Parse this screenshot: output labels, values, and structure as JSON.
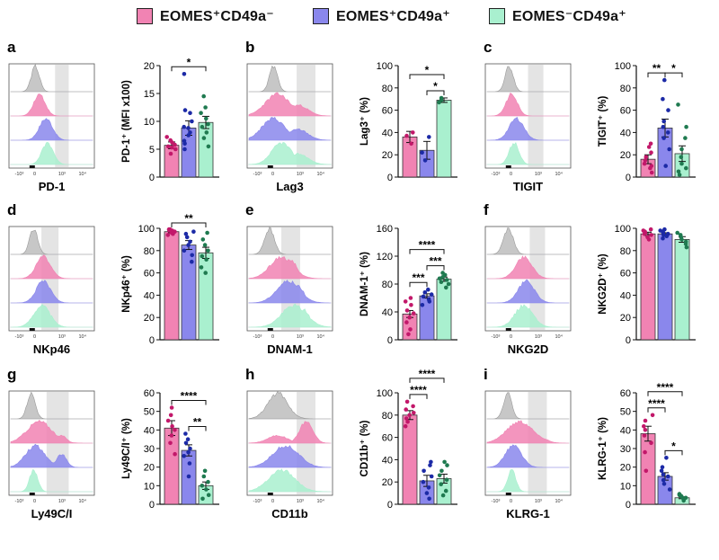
{
  "legend": [
    {
      "label": "EOMES⁺CD49a⁻",
      "color": "#f183b3"
    },
    {
      "label": "EOMES⁺CD49a⁺",
      "color": "#8a87ec"
    },
    {
      "label": "EOMES⁻CD49a⁺",
      "color": "#a9f0cf"
    }
  ],
  "colors": {
    "group1": "#f183b3",
    "group1_dot": "#c2186a",
    "group2": "#8a87ec",
    "group2_dot": "#1c2aa6",
    "group3": "#a9f0cf",
    "group3_dot": "#1f7a50",
    "histogram_isotype": "#bdbdbd",
    "gate": "#e4e4e4"
  },
  "hist_axis_ticks": [
    "-10³",
    "0",
    "10³",
    "10⁴"
  ],
  "chart_data": [
    {
      "panel": "a",
      "type": "bar",
      "marker": "PD-1",
      "ylabel": "PD-1⁺ (MFI x100)",
      "ylim": [
        0,
        20
      ],
      "yticks": [
        0,
        5,
        10,
        15,
        20
      ],
      "values": [
        5.7,
        8.8,
        9.8
      ],
      "errors": [
        0.6,
        1.3,
        1.1
      ],
      "points": [
        [
          4.2,
          5.0,
          5.3,
          5.8,
          6.2,
          6.6,
          7.2,
          5.5
        ],
        [
          5.0,
          6.0,
          6.5,
          7.5,
          8.0,
          8.8,
          9.0,
          10.0,
          11.5,
          12.0,
          18.5
        ],
        [
          5.5,
          7.0,
          8.0,
          9.0,
          9.5,
          10.5,
          11.5,
          12.5,
          14.5
        ]
      ],
      "significance": [
        {
          "from": 0,
          "to": 2,
          "label": "*"
        }
      ]
    },
    {
      "panel": "b",
      "type": "bar",
      "marker": "Lag3",
      "ylabel": "Lag3⁺ (%)",
      "ylim": [
        0,
        100
      ],
      "yticks": [
        0,
        20,
        40,
        60,
        80,
        100
      ],
      "values": [
        36,
        24,
        69
      ],
      "errors": [
        5,
        8,
        2
      ],
      "points": [
        [
          30,
          40,
          37
        ],
        [
          15,
          22,
          36
        ],
        [
          67,
          69,
          71
        ]
      ],
      "significance": [
        {
          "from": 0,
          "to": 2,
          "label": "*"
        },
        {
          "from": 1,
          "to": 2,
          "label": "*"
        }
      ]
    },
    {
      "panel": "c",
      "type": "bar",
      "marker": "TIGIT",
      "ylabel": "TIGIT⁺ (%)",
      "ylim": [
        0,
        100
      ],
      "yticks": [
        0,
        20,
        40,
        60,
        80,
        100
      ],
      "values": [
        16,
        44,
        21
      ],
      "errors": [
        4,
        8,
        7
      ],
      "points": [
        [
          4,
          8,
          10,
          12,
          15,
          18,
          22,
          27,
          30
        ],
        [
          10,
          25,
          35,
          40,
          45,
          50,
          60,
          70,
          87
        ],
        [
          2,
          5,
          8,
          12,
          18,
          25,
          35,
          45,
          65
        ]
      ],
      "significance": [
        {
          "from": 0,
          "to": 1,
          "label": "**"
        },
        {
          "from": 1,
          "to": 2,
          "label": "*"
        }
      ]
    },
    {
      "panel": "d",
      "type": "bar",
      "marker": "NKp46",
      "ylabel": "NKp46⁺ (%)",
      "ylim": [
        0,
        100
      ],
      "yticks": [
        0,
        20,
        40,
        60,
        80,
        100
      ],
      "values": [
        97,
        85,
        78
      ],
      "errors": [
        1,
        4,
        5
      ],
      "points": [
        [
          94,
          95,
          96,
          97,
          98,
          98,
          99,
          99
        ],
        [
          70,
          76,
          80,
          85,
          88,
          92,
          95,
          97
        ],
        [
          60,
          65,
          72,
          75,
          80,
          85,
          90,
          96
        ]
      ],
      "significance": [
        {
          "from": 0,
          "to": 2,
          "label": "**"
        }
      ]
    },
    {
      "panel": "e",
      "type": "bar",
      "marker": "DNAM-1",
      "ylabel": "DNAM-1⁺ (%)",
      "ylim": [
        0,
        160
      ],
      "yticks": [
        0,
        40,
        80,
        120,
        160
      ],
      "values": [
        37,
        63,
        87
      ],
      "errors": [
        5,
        3,
        3
      ],
      "points": [
        [
          8,
          15,
          25,
          32,
          38,
          42,
          50,
          55,
          60
        ],
        [
          50,
          55,
          58,
          62,
          65,
          68,
          72
        ],
        [
          75,
          80,
          83,
          86,
          88,
          90,
          93,
          96
        ]
      ],
      "significance": [
        {
          "from": 0,
          "to": 2,
          "label": "****"
        },
        {
          "from": 0,
          "to": 1,
          "label": "***"
        },
        {
          "from": 1,
          "to": 2,
          "label": "***"
        }
      ]
    },
    {
      "panel": "f",
      "type": "bar",
      "marker": "NKG2D",
      "ylabel": "NKG2D⁺ (%)",
      "ylim": [
        0,
        100
      ],
      "yticks": [
        0,
        20,
        40,
        60,
        80,
        100
      ],
      "values": [
        95,
        95,
        90
      ],
      "errors": [
        1.5,
        1,
        2.5
      ],
      "points": [
        [
          90,
          92,
          94,
          95,
          96,
          97,
          98,
          99
        ],
        [
          91,
          93,
          94,
          95,
          96,
          97,
          98,
          99
        ],
        [
          83,
          86,
          88,
          90,
          92,
          94,
          96
        ]
      ],
      "significance": []
    },
    {
      "panel": "g",
      "type": "bar",
      "marker": "Ly49C/I",
      "ylabel": "Ly49C/I⁺ (%)",
      "ylim": [
        0,
        60
      ],
      "yticks": [
        0,
        10,
        20,
        30,
        40,
        50,
        60
      ],
      "values": [
        41,
        29,
        10
      ],
      "errors": [
        4,
        3,
        2
      ],
      "points": [
        [
          27,
          33,
          37,
          40,
          42,
          45,
          48,
          52
        ],
        [
          15,
          22,
          26,
          28,
          30,
          33,
          35,
          38
        ],
        [
          3,
          5,
          8,
          10,
          12,
          15,
          18
        ]
      ],
      "significance": [
        {
          "from": 0,
          "to": 2,
          "label": "****"
        },
        {
          "from": 1,
          "to": 2,
          "label": "**"
        }
      ]
    },
    {
      "panel": "h",
      "type": "bar",
      "marker": "CD11b",
      "ylabel": "CD11b⁺ (%)",
      "ylim": [
        0,
        100
      ],
      "yticks": [
        0,
        20,
        40,
        60,
        80,
        100
      ],
      "values": [
        80,
        21,
        23
      ],
      "errors": [
        4,
        5,
        4
      ],
      "points": [
        [
          70,
          74,
          77,
          80,
          82,
          85,
          88,
          92
        ],
        [
          5,
          10,
          15,
          20,
          25,
          30,
          35,
          38
        ],
        [
          8,
          12,
          18,
          22,
          26,
          30,
          35,
          38
        ]
      ],
      "significance": [
        {
          "from": 0,
          "to": 2,
          "label": "****"
        },
        {
          "from": 0,
          "to": 1,
          "label": "****"
        }
      ]
    },
    {
      "panel": "i",
      "type": "bar",
      "marker": "KLRG-1",
      "ylabel": "KLRG-1⁺ (%)",
      "ylim": [
        0,
        60
      ],
      "yticks": [
        0,
        10,
        20,
        30,
        40,
        50,
        60
      ],
      "values": [
        38,
        15,
        3.5
      ],
      "errors": [
        4,
        2,
        0.5
      ],
      "points": [
        [
          18,
          28,
          33,
          37,
          40,
          42,
          45,
          48
        ],
        [
          8,
          11,
          13,
          15,
          16,
          18,
          20,
          25
        ],
        [
          2,
          3,
          3.5,
          4,
          4.5,
          5,
          5.5
        ]
      ],
      "significance": [
        {
          "from": 0,
          "to": 2,
          "label": "****"
        },
        {
          "from": 0,
          "to": 1,
          "label": "****"
        },
        {
          "from": 1,
          "to": 2,
          "label": "*"
        }
      ]
    }
  ]
}
